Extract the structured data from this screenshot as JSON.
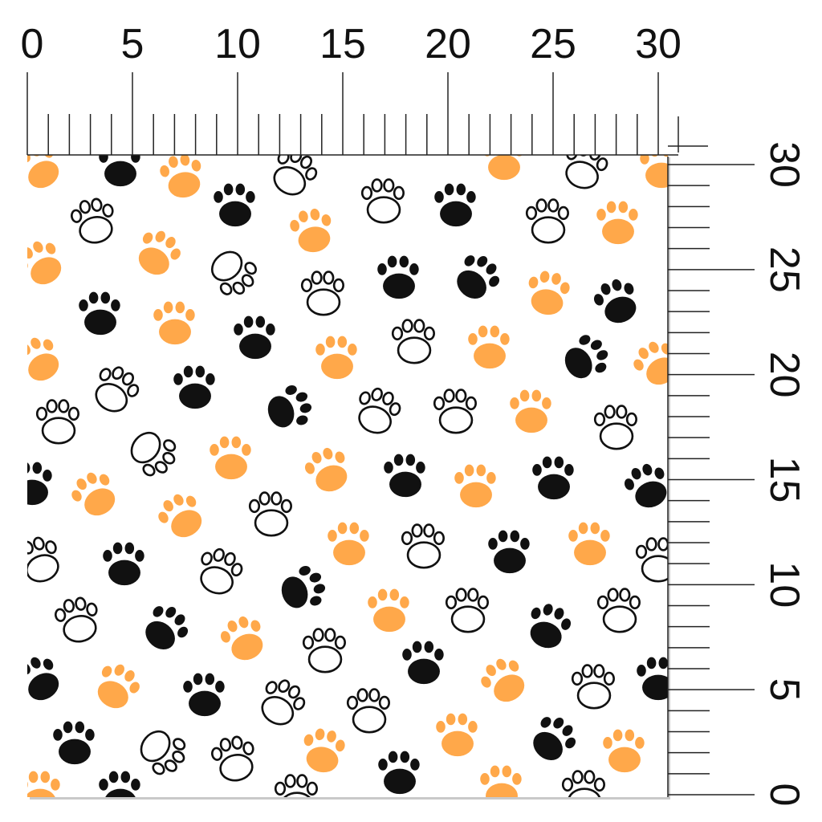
{
  "ruler_top": {
    "unit_labels": [
      "0",
      "5",
      "10",
      "15",
      "20",
      "25",
      "30"
    ],
    "max_value": 30
  },
  "ruler_right": {
    "unit_labels": [
      "0",
      "5",
      "10",
      "15",
      "20",
      "25",
      "30"
    ],
    "max_value": 30
  },
  "fabric": {
    "pattern": "paw-prints",
    "background": "#ffffff",
    "colors": {
      "orange": "#ffa84a",
      "black": "#111111",
      "outline": "#111111"
    }
  }
}
